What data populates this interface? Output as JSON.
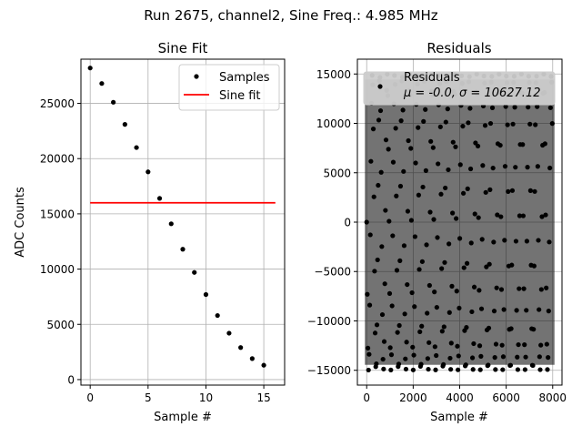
{
  "figure": {
    "suptitle": "Run 2675, channel2, Sine Freq.: 4.985 MHz"
  },
  "chart_data": [
    {
      "type": "line",
      "title": "Sine Fit",
      "xlabel": "Sample #",
      "ylabel": "ADC Counts",
      "xlim": [
        -0.8,
        16.8
      ],
      "ylim": [
        -500,
        29000
      ],
      "xticks": [
        0,
        5,
        10,
        15
      ],
      "yticks": [
        0,
        5000,
        10000,
        15000,
        20000,
        25000
      ],
      "grid": true,
      "legend_position": "upper right",
      "series": [
        {
          "name": "Samples",
          "kind": "points",
          "color": "#000000",
          "x": [
            0,
            1,
            2,
            3,
            4,
            5,
            6,
            7,
            8,
            9,
            10,
            11,
            12,
            13,
            14,
            15
          ],
          "y": [
            28200,
            26800,
            25100,
            23100,
            21000,
            18800,
            16400,
            14100,
            11800,
            9700,
            7700,
            5800,
            4200,
            2900,
            1900,
            1300
          ]
        },
        {
          "name": "Sine fit",
          "kind": "line",
          "color": "#ff0000",
          "x": [
            0,
            16
          ],
          "y": [
            16000,
            16000
          ]
        }
      ]
    },
    {
      "type": "scatter",
      "title": "Residuals",
      "xlabel": "Sample #",
      "ylabel": "",
      "xlim": [
        -400,
        8400
      ],
      "ylim": [
        -16500,
        16500
      ],
      "xticks": [
        0,
        2000,
        4000,
        6000,
        8000
      ],
      "yticks": [
        -15000,
        -10000,
        -5000,
        0,
        5000,
        10000,
        15000
      ],
      "grid": true,
      "legend_position": "upper left",
      "series": [
        {
          "name": "Residuals",
          "kind": "points",
          "color": "#000000",
          "stats_label": "μ = -0.0, σ = 10627.12",
          "n_points": 8000,
          "x_range": [
            0,
            8000
          ],
          "y_range": [
            -15000,
            15000
          ],
          "note": "dense band of residual samples oscillating between about -15000 and +15000 across all samples"
        }
      ]
    }
  ]
}
